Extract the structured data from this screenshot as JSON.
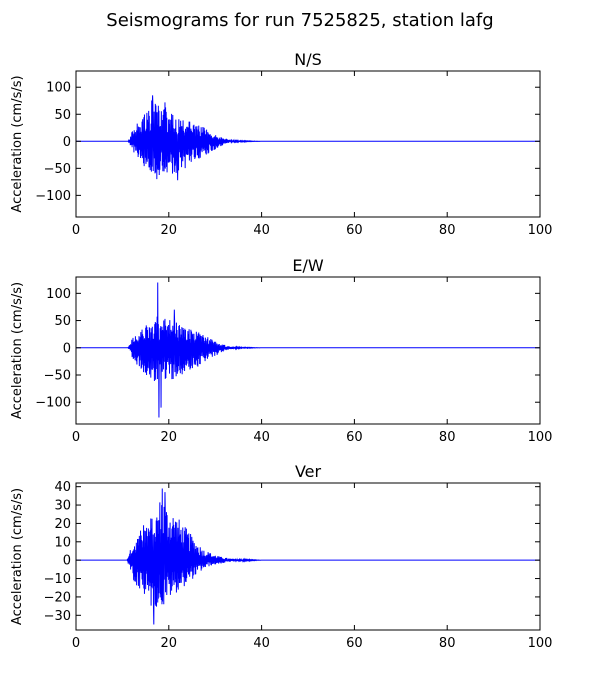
{
  "suptitle": "Seismograms for run 7525825, station lafg",
  "chart_data": [
    {
      "type": "line",
      "title": "N/S",
      "xlabel": "",
      "ylabel": "Acceleration (cm/s/s)",
      "xlim": [
        0,
        100
      ],
      "ylim": [
        -140,
        130
      ],
      "xticks": [
        0,
        20,
        40,
        60,
        80,
        100
      ],
      "yticks": [
        -100,
        -50,
        0,
        50,
        100
      ],
      "grid": false,
      "color": "#0000ff",
      "series": [
        {
          "envelope": {
            "x": [
              0,
              11.2,
              11.8,
              12.5,
              14,
              15.5,
              16.5,
              17.5,
              19,
              20,
              21,
              22,
              23.5,
              25,
              26.5,
              28,
              29.5,
              31,
              33,
              35,
              40,
              100
            ],
            "upper": [
              0,
              0,
              12,
              28,
              45,
              60,
              85,
              70,
              65,
              60,
              55,
              50,
              40,
              35,
              30,
              25,
              18,
              10,
              3,
              1,
              0,
              0
            ],
            "lower": [
              0,
              0,
              -10,
              -22,
              -40,
              -55,
              -60,
              -70,
              -65,
              -60,
              -72,
              -55,
              -50,
              -40,
              -32,
              -25,
              -18,
              -10,
              -3,
              -1,
              0,
              0
            ]
          },
          "peaks": [
            {
              "x": 16.5,
              "y": 85
            },
            {
              "x": 17.4,
              "y": -70
            },
            {
              "x": 21.9,
              "y": -72
            },
            {
              "x": 19.2,
              "y": 72
            }
          ]
        }
      ]
    },
    {
      "type": "line",
      "title": "E/W",
      "xlabel": "",
      "ylabel": "Acceleration (cm/s/s)",
      "xlim": [
        0,
        100
      ],
      "ylim": [
        -140,
        130
      ],
      "xticks": [
        0,
        20,
        40,
        60,
        80,
        100
      ],
      "yticks": [
        -100,
        -50,
        0,
        50,
        100
      ],
      "grid": false,
      "color": "#0000ff",
      "series": [
        {
          "envelope": {
            "x": [
              0,
              11.2,
              11.8,
              12.5,
              14,
              15.5,
              16.5,
              17.5,
              19,
              20,
              21,
              22,
              23.5,
              25,
              26.5,
              28,
              29.5,
              31,
              33,
              35,
              40,
              100
            ],
            "upper": [
              0,
              0,
              10,
              25,
              35,
              45,
              50,
              60,
              55,
              70,
              50,
              45,
              40,
              35,
              30,
              22,
              15,
              8,
              3,
              1,
              0,
              0
            ],
            "lower": [
              0,
              0,
              -12,
              -25,
              -40,
              -55,
              -70,
              -60,
              -60,
              -55,
              -65,
              -55,
              -45,
              -40,
              -35,
              -25,
              -18,
              -10,
              -3,
              -1,
              0,
              0
            ]
          },
          "peaks": [
            {
              "x": 17.6,
              "y": 120
            },
            {
              "x": 17.9,
              "y": -128
            },
            {
              "x": 18.3,
              "y": -110
            },
            {
              "x": 21.2,
              "y": 70
            }
          ]
        }
      ]
    },
    {
      "type": "line",
      "title": "Ver",
      "xlabel": "",
      "ylabel": "Acceleration (cm/s/s)",
      "xlim": [
        0,
        100
      ],
      "ylim": [
        -38,
        42
      ],
      "xticks": [
        0,
        20,
        40,
        60,
        80,
        100
      ],
      "yticks": [
        -30,
        -20,
        -10,
        0,
        10,
        20,
        30,
        40
      ],
      "grid": false,
      "color": "#0000ff",
      "series": [
        {
          "envelope": {
            "x": [
              0,
              11.0,
              11.6,
              12.5,
              14,
              15.5,
              16.5,
              17.5,
              18.5,
              19.5,
              20.5,
              21.5,
              23,
              24.5,
              26,
              27.5,
              29,
              31,
              33,
              35.5,
              40,
              100
            ],
            "upper": [
              0,
              0,
              6,
              12,
              18,
              22,
              25,
              28,
              38,
              30,
              28,
              25,
              20,
              15,
              10,
              6,
              4,
              2,
              1,
              0.5,
              0,
              0
            ],
            "lower": [
              0,
              0,
              -5,
              -12,
              -18,
              -22,
              -28,
              -25,
              -25,
              -22,
              -20,
              -18,
              -15,
              -12,
              -8,
              -5,
              -3,
              -2,
              -1,
              -0.5,
              0,
              0
            ]
          },
          "peaks": [
            {
              "x": 18.6,
              "y": 39
            },
            {
              "x": 16.8,
              "y": -35
            },
            {
              "x": 19.2,
              "y": 37
            },
            {
              "x": 18.9,
              "y": -24
            }
          ]
        }
      ]
    }
  ]
}
